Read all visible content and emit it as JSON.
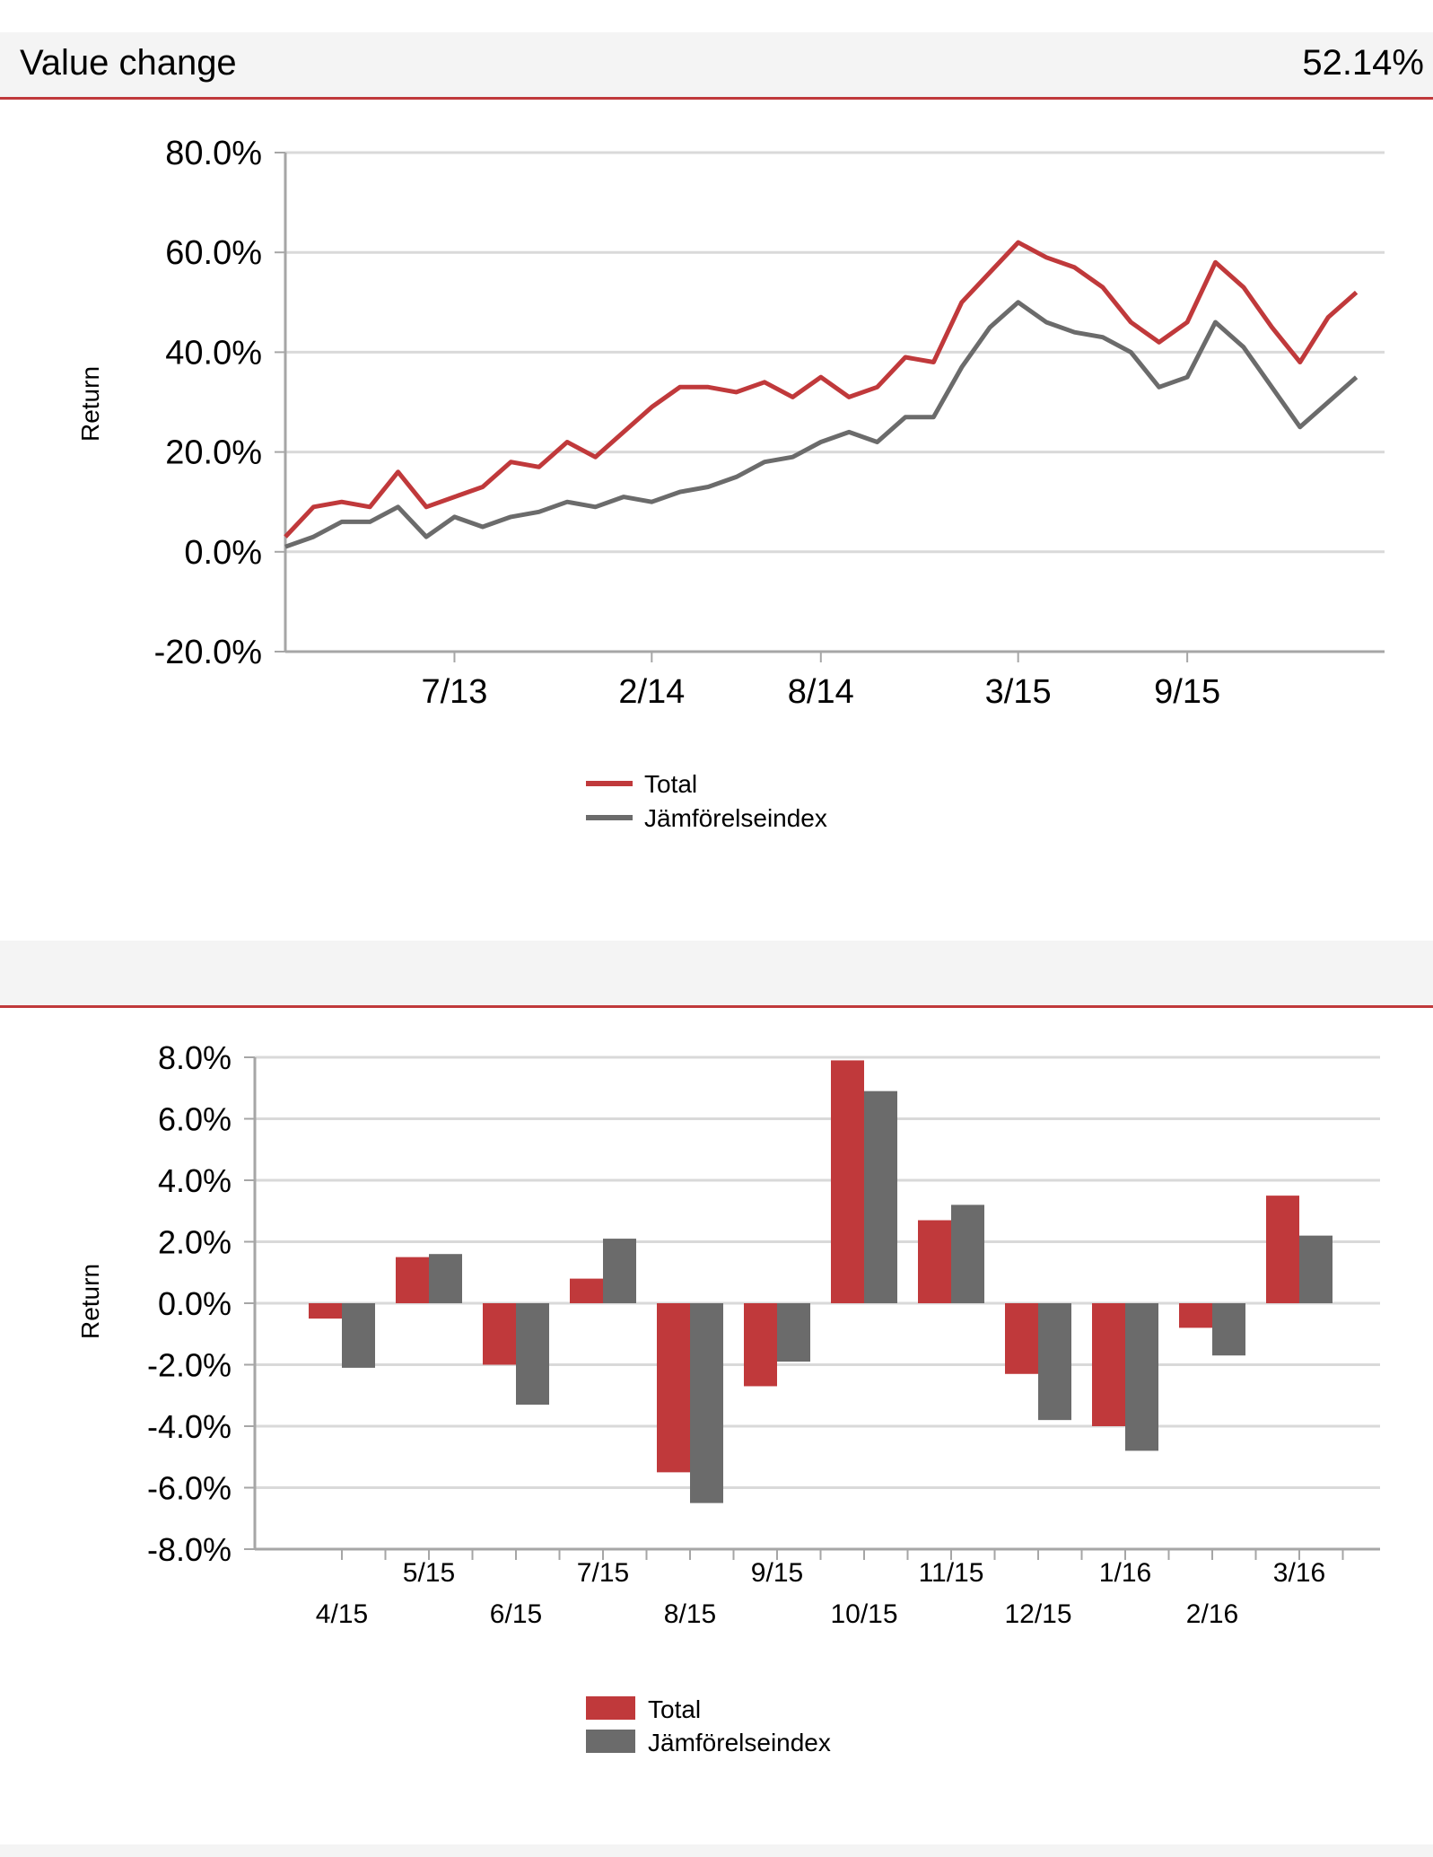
{
  "header_top": {
    "title": "Value change",
    "value": "52.14%"
  },
  "header_bottom": {
    "title": ""
  },
  "colors": {
    "total": "#c0393b",
    "index": "#6b6b6b",
    "grid": "#d9d9d9",
    "axis": "#a6a6a6",
    "header_line": "#c0393b"
  },
  "chart_data": [
    {
      "type": "line",
      "ylabel": "Return",
      "ylim": [
        -20,
        80
      ],
      "y_ticks": [
        "80.0%",
        "60.0%",
        "40.0%",
        "20.0%",
        "0.0%",
        "-20.0%"
      ],
      "x_tick_labels": [
        "7/13",
        "2/14",
        "8/14",
        "3/15",
        "9/15"
      ],
      "grid": true,
      "legend_position": "bottom",
      "series": [
        {
          "name": "Total",
          "points": [
            [
              "1/13",
              3
            ],
            [
              "2/13",
              9
            ],
            [
              "3/13",
              10
            ],
            [
              "4/13",
              9
            ],
            [
              "5/13",
              16
            ],
            [
              "6/13",
              9
            ],
            [
              "7/13",
              11
            ],
            [
              "8/13",
              13
            ],
            [
              "9/13",
              18
            ],
            [
              "10/13",
              17
            ],
            [
              "11/13",
              22
            ],
            [
              "12/13",
              19
            ],
            [
              "1/14",
              24
            ],
            [
              "2/14",
              29
            ],
            [
              "3/14",
              33
            ],
            [
              "4/14",
              33
            ],
            [
              "5/14",
              32
            ],
            [
              "6/14",
              34
            ],
            [
              "7/14",
              31
            ],
            [
              "8/14",
              35
            ],
            [
              "9/14",
              31
            ],
            [
              "10/14",
              33
            ],
            [
              "11/14",
              39
            ],
            [
              "12/14",
              38
            ],
            [
              "1/15",
              50
            ],
            [
              "2/15",
              56
            ],
            [
              "3/15",
              62
            ],
            [
              "4/15",
              59
            ],
            [
              "5/15",
              57
            ],
            [
              "6/15",
              53
            ],
            [
              "7/15",
              46
            ],
            [
              "8/15",
              42
            ],
            [
              "9/15",
              46
            ],
            [
              "10/15",
              58
            ],
            [
              "11/15",
              53
            ],
            [
              "12/15",
              45
            ],
            [
              "1/16",
              38
            ],
            [
              "2/16",
              47
            ],
            [
              "3/16",
              52
            ]
          ]
        },
        {
          "name": "Jämförelseindex",
          "points": [
            [
              "1/13",
              1
            ],
            [
              "2/13",
              3
            ],
            [
              "3/13",
              6
            ],
            [
              "4/13",
              6
            ],
            [
              "5/13",
              9
            ],
            [
              "6/13",
              3
            ],
            [
              "7/13",
              7
            ],
            [
              "8/13",
              5
            ],
            [
              "9/13",
              7
            ],
            [
              "10/13",
              8
            ],
            [
              "11/13",
              10
            ],
            [
              "12/13",
              9
            ],
            [
              "1/14",
              11
            ],
            [
              "2/14",
              10
            ],
            [
              "3/14",
              12
            ],
            [
              "4/14",
              13
            ],
            [
              "5/14",
              15
            ],
            [
              "6/14",
              18
            ],
            [
              "7/14",
              19
            ],
            [
              "8/14",
              22
            ],
            [
              "9/14",
              24
            ],
            [
              "10/14",
              22
            ],
            [
              "11/14",
              27
            ],
            [
              "12/14",
              27
            ],
            [
              "1/15",
              37
            ],
            [
              "2/15",
              45
            ],
            [
              "3/15",
              50
            ],
            [
              "4/15",
              46
            ],
            [
              "5/15",
              44
            ],
            [
              "6/15",
              43
            ],
            [
              "7/15",
              40
            ],
            [
              "8/15",
              33
            ],
            [
              "9/15",
              35
            ],
            [
              "10/15",
              46
            ],
            [
              "11/15",
              41
            ],
            [
              "12/15",
              33
            ],
            [
              "1/16",
              25
            ],
            [
              "2/16",
              30
            ],
            [
              "3/16",
              35
            ]
          ]
        }
      ]
    },
    {
      "type": "bar",
      "ylabel": "Return",
      "ylim": [
        -8,
        8
      ],
      "y_ticks": [
        "8.0%",
        "6.0%",
        "4.0%",
        "2.0%",
        "0.0%",
        "-2.0%",
        "-4.0%",
        "-6.0%",
        "-8.0%"
      ],
      "categories": [
        "4/15",
        "5/15",
        "6/15",
        "7/15",
        "8/15",
        "9/15",
        "10/15",
        "11/15",
        "12/15",
        "1/16",
        "2/16",
        "3/16"
      ],
      "grid": true,
      "legend_position": "bottom",
      "series": [
        {
          "name": "Total",
          "values": [
            -0.5,
            1.5,
            -2.0,
            0.8,
            -5.5,
            -2.7,
            7.9,
            2.7,
            -2.3,
            -4.0,
            -0.8,
            3.5
          ]
        },
        {
          "name": "Jämförelseindex",
          "values": [
            -2.1,
            1.6,
            -3.3,
            2.1,
            -6.5,
            -1.9,
            6.9,
            3.2,
            -3.8,
            -4.8,
            -1.7,
            2.2
          ]
        }
      ]
    }
  ]
}
